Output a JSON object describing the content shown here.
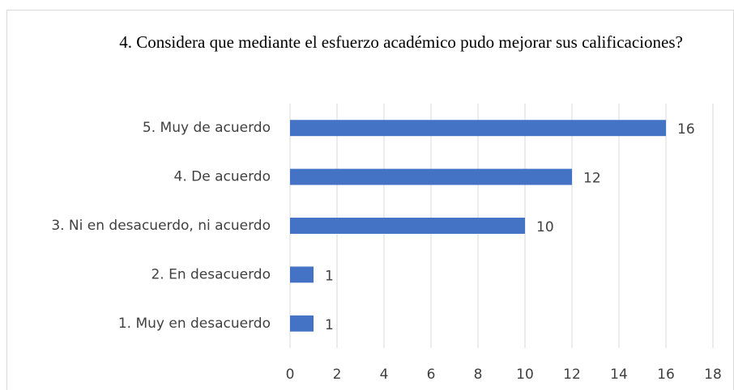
{
  "chart_data": {
    "type": "bar",
    "orientation": "horizontal",
    "title": "4. Considera que mediante el esfuerzo académico pudo mejorar sus calificaciones?",
    "categories": [
      "5. Muy de acuerdo",
      "4. De acuerdo",
      "3. Ni en desacuerdo, ni acuerdo",
      "2. En desacuerdo",
      "1. Muy en desacuerdo"
    ],
    "values": [
      16,
      12,
      10,
      1,
      1
    ],
    "color": "#4472c4",
    "xlim": [
      0,
      18
    ],
    "xticks": [
      0,
      2,
      4,
      6,
      8,
      10,
      12,
      14,
      16,
      18
    ],
    "grid": true
  }
}
